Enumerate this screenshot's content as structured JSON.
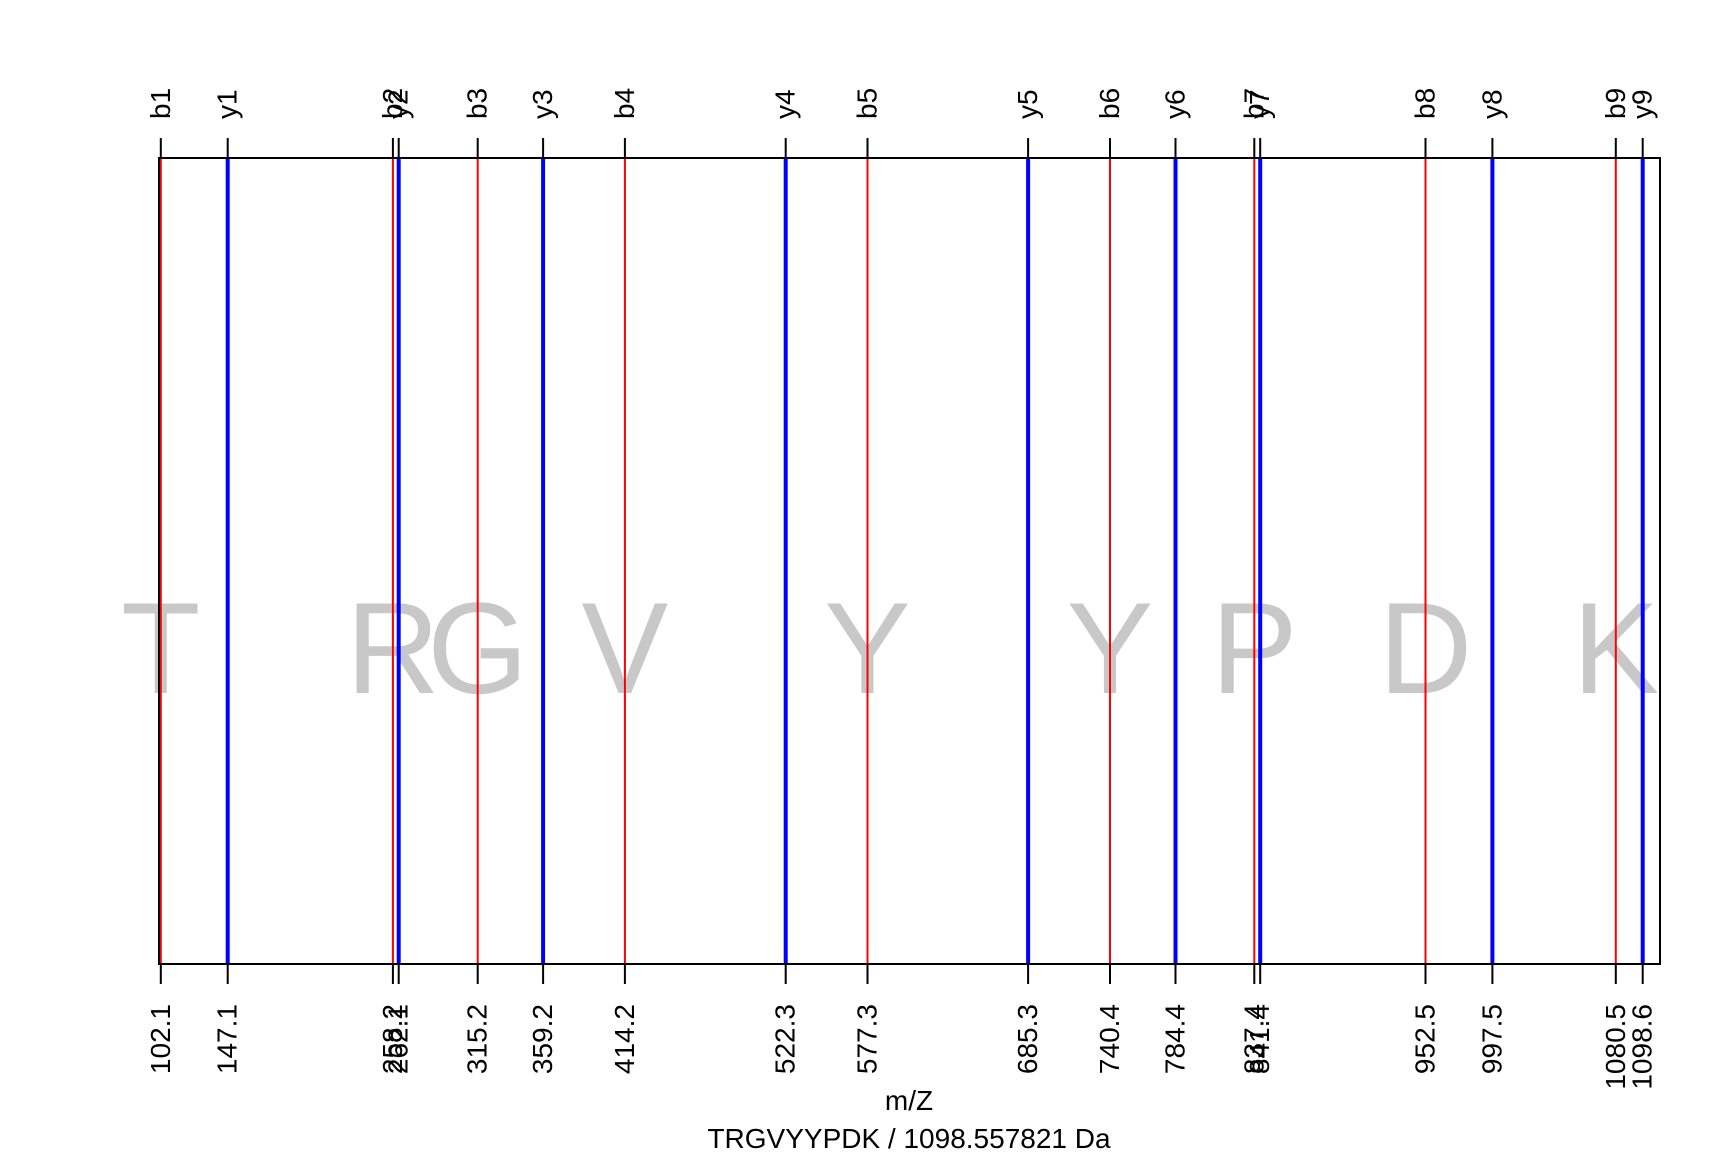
{
  "chart_data": {
    "type": "line",
    "title": "TRGVYYPDK / 1098.557821 Da",
    "xlabel": "m/Z",
    "ylabel": "",
    "xlim": [
      100.9,
      1110.2
    ],
    "grid": false,
    "colors": {
      "b": "#ff0000",
      "y": "#0000ff",
      "residue": "#c8c8c8"
    },
    "b_ions": [
      {
        "label": "b1",
        "mz": 102.1,
        "mz_label": "102.1"
      },
      {
        "label": "b2",
        "mz": 258.2,
        "mz_label": "258.2"
      },
      {
        "label": "b3",
        "mz": 315.2,
        "mz_label": "315.2"
      },
      {
        "label": "b4",
        "mz": 414.2,
        "mz_label": "414.2"
      },
      {
        "label": "b5",
        "mz": 577.3,
        "mz_label": "577.3"
      },
      {
        "label": "b6",
        "mz": 740.4,
        "mz_label": "740.4"
      },
      {
        "label": "b7",
        "mz": 837.4,
        "mz_label": "837.4"
      },
      {
        "label": "b8",
        "mz": 952.5,
        "mz_label": "952.5"
      },
      {
        "label": "b9",
        "mz": 1080.5,
        "mz_label": "1080.5"
      }
    ],
    "y_ions": [
      {
        "label": "y1",
        "mz": 147.1,
        "mz_label": "147.1"
      },
      {
        "label": "y2",
        "mz": 262.1,
        "mz_label": "262.1"
      },
      {
        "label": "y3",
        "mz": 359.2,
        "mz_label": "359.2"
      },
      {
        "label": "y4",
        "mz": 522.3,
        "mz_label": "522.3"
      },
      {
        "label": "y5",
        "mz": 685.3,
        "mz_label": "685.3"
      },
      {
        "label": "y6",
        "mz": 784.4,
        "mz_label": "784.4"
      },
      {
        "label": "y7",
        "mz": 841.4,
        "mz_label": "841.4"
      },
      {
        "label": "y8",
        "mz": 997.5,
        "mz_label": "997.5"
      },
      {
        "label": "y9",
        "mz": 1098.6,
        "mz_label": "1098.6"
      }
    ],
    "residues": [
      {
        "letter": "T",
        "mz": 102.1
      },
      {
        "letter": "R",
        "mz": 258.2
      },
      {
        "letter": "G",
        "mz": 315.2
      },
      {
        "letter": "V",
        "mz": 414.2
      },
      {
        "letter": "Y",
        "mz": 577.3
      },
      {
        "letter": "Y",
        "mz": 740.4
      },
      {
        "letter": "P",
        "mz": 837.4
      },
      {
        "letter": "D",
        "mz": 952.5
      },
      {
        "letter": "K",
        "mz": 1080.5
      }
    ]
  }
}
